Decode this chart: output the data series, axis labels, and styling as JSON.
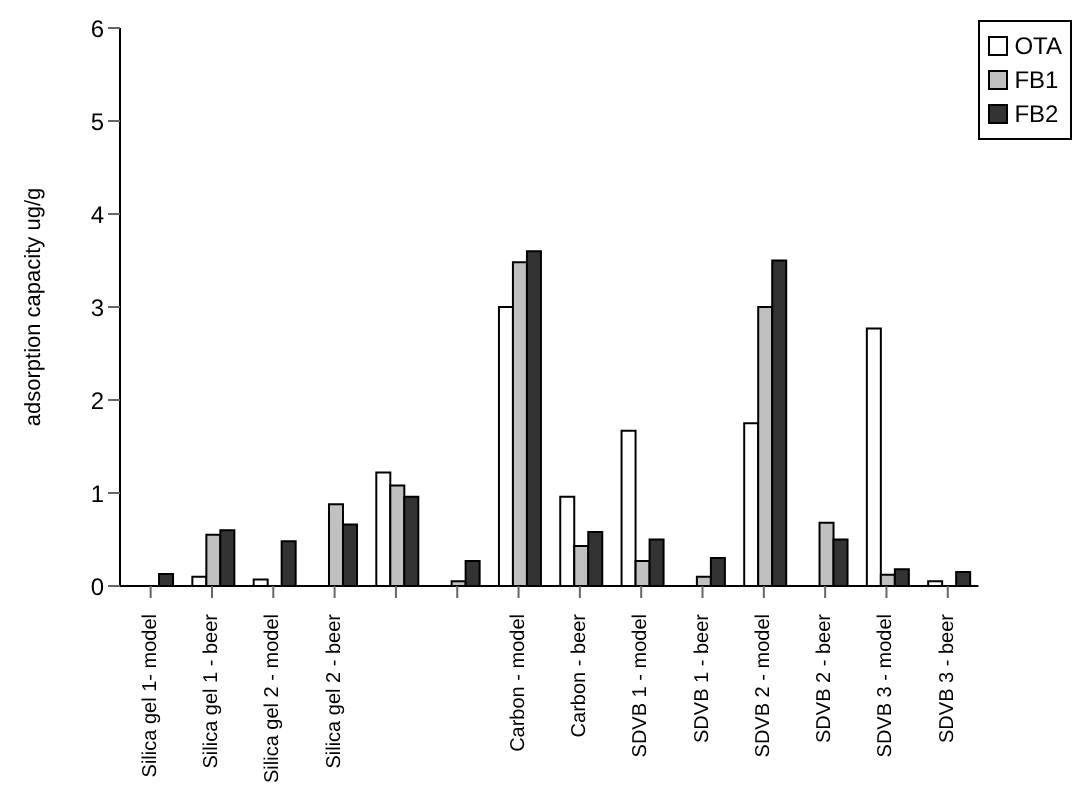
{
  "chart_data": {
    "type": "bar",
    "ylabel": "adsorption capacity ug/g",
    "categories": [
      "Silica gel 1- model",
      "Silica gel 1 - beer",
      "Silica gel 2 - model",
      "Silica gel 2 - beer",
      null,
      null,
      "Carbon - model",
      "Carbon - beer",
      "SDVB 1 - model",
      "SDVB 1 - beer",
      "SDVB 2 - model",
      "SDVB 2 - beer",
      "SDVB 3 - model",
      "SDVB 3 - beer"
    ],
    "series": [
      {
        "name": "OTA",
        "color": "#ffffff",
        "values": [
          0,
          0.1,
          0.07,
          0,
          1.22,
          0,
          3.0,
          0.96,
          1.67,
          0,
          1.75,
          0,
          2.77,
          0.05
        ]
      },
      {
        "name": "FB1",
        "color": "#c0c0c0",
        "values": [
          0,
          0.55,
          0,
          0.88,
          1.08,
          0.05,
          3.48,
          0.43,
          0.27,
          0.1,
          3.0,
          0.68,
          0.12,
          0
        ]
      },
      {
        "name": "FB2",
        "color": "#333333",
        "values": [
          0.13,
          0.6,
          0.48,
          0.66,
          0.96,
          0.27,
          3.6,
          0.58,
          0.5,
          0.3,
          3.5,
          0.5,
          0.18,
          0.15
        ]
      }
    ],
    "ylim": [
      0,
      6
    ],
    "yticks": [
      0,
      1,
      2,
      3,
      4,
      5,
      6
    ],
    "grid": false,
    "legend": "top right"
  }
}
